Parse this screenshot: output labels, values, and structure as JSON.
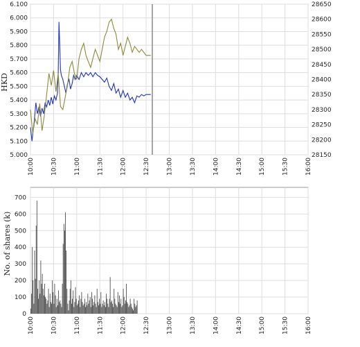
{
  "chart_data": [
    {
      "type": "line",
      "ylabel": "HKD",
      "x_ticks": [
        "10:00",
        "10:30",
        "11:00",
        "11:30",
        "12:00",
        "12:30",
        "13:00",
        "13:30",
        "14:00",
        "14:30",
        "15:00",
        "15:30",
        "16:00"
      ],
      "y_left_ticks": [
        "5.000",
        "5.100",
        "5.200",
        "5.300",
        "5.400",
        "5.500",
        "5.600",
        "5.700",
        "5.800",
        "5.900",
        "6.000",
        "6.100"
      ],
      "y_right_ticks": [
        "28150",
        "28200",
        "28250",
        "28300",
        "28350",
        "28400",
        "28450",
        "28500",
        "28550",
        "28600",
        "28650"
      ],
      "ylim_left": [
        5.0,
        6.1
      ],
      "ylim_right": [
        28150,
        28650
      ],
      "grid": true,
      "current_time_marker": "12:38",
      "series": [
        {
          "axis": "left",
          "color": "#2233bb",
          "x": [
            "10:00",
            "10:02",
            "10:03",
            "10:05",
            "10:07",
            "10:09",
            "10:11",
            "10:13",
            "10:15",
            "10:17",
            "10:19",
            "10:21",
            "10:23",
            "10:25",
            "10:27",
            "10:29",
            "10:31",
            "10:33",
            "10:35",
            "10:36",
            "10:37",
            "10:38",
            "10:39",
            "10:40",
            "10:42",
            "10:44",
            "10:46",
            "10:48",
            "10:50",
            "10:52",
            "10:54",
            "10:56",
            "10:58",
            "11:00",
            "11:03",
            "11:06",
            "11:09",
            "11:12",
            "11:15",
            "11:18",
            "11:21",
            "11:24",
            "11:27",
            "11:30",
            "11:33",
            "11:36",
            "11:39",
            "11:42",
            "11:45",
            "11:48",
            "11:51",
            "11:54",
            "11:57",
            "12:00",
            "12:03",
            "12:06",
            "12:09",
            "12:12",
            "12:15",
            "12:18",
            "12:21",
            "12:24",
            "12:27",
            "12:30",
            "12:33",
            "12:36"
          ],
          "y": [
            5.2,
            5.1,
            5.15,
            5.25,
            5.38,
            5.3,
            5.35,
            5.28,
            5.34,
            5.3,
            5.38,
            5.35,
            5.4,
            5.36,
            5.42,
            5.37,
            5.43,
            5.4,
            5.45,
            5.6,
            5.97,
            5.8,
            5.62,
            5.58,
            5.55,
            5.5,
            5.45,
            5.52,
            5.55,
            5.48,
            5.52,
            5.58,
            5.55,
            5.58,
            5.55,
            5.6,
            5.57,
            5.6,
            5.58,
            5.6,
            5.57,
            5.6,
            5.58,
            5.57,
            5.55,
            5.53,
            5.56,
            5.5,
            5.47,
            5.52,
            5.45,
            5.48,
            5.42,
            5.47,
            5.42,
            5.45,
            5.4,
            5.42,
            5.38,
            5.43,
            5.42,
            5.44,
            5.43,
            5.44,
            5.44,
            5.44
          ]
        },
        {
          "axis": "right",
          "color": "#8a8a3a",
          "x": [
            "10:00",
            "10:03",
            "10:06",
            "10:09",
            "10:12",
            "10:15",
            "10:18",
            "10:21",
            "10:24",
            "10:27",
            "10:30",
            "10:33",
            "10:36",
            "10:39",
            "10:42",
            "10:45",
            "10:48",
            "10:51",
            "10:54",
            "10:57",
            "11:00",
            "11:03",
            "11:06",
            "11:09",
            "11:12",
            "11:15",
            "11:18",
            "11:21",
            "11:24",
            "11:27",
            "11:30",
            "11:33",
            "11:36",
            "11:39",
            "11:42",
            "11:45",
            "11:48",
            "11:51",
            "11:54",
            "11:57",
            "12:00",
            "12:03",
            "12:06",
            "12:09",
            "12:12",
            "12:15",
            "12:18",
            "12:21",
            "12:24",
            "12:27",
            "12:30",
            "12:33",
            "12:36"
          ],
          "y": [
            28300,
            28220,
            28270,
            28250,
            28320,
            28230,
            28280,
            28350,
            28420,
            28380,
            28430,
            28360,
            28420,
            28310,
            28300,
            28340,
            28380,
            28440,
            28460,
            28420,
            28400,
            28470,
            28500,
            28520,
            28480,
            28460,
            28440,
            28470,
            28500,
            28480,
            28460,
            28500,
            28540,
            28560,
            28590,
            28600,
            28570,
            28550,
            28500,
            28520,
            28480,
            28510,
            28540,
            28520,
            28490,
            28510,
            28500,
            28490,
            28500,
            28490,
            28480,
            28480,
            28480
          ]
        }
      ]
    },
    {
      "type": "bar",
      "ylabel": "No. of shares (k)",
      "x_ticks": [
        "10:00",
        "10:30",
        "11:00",
        "11:30",
        "12:00",
        "12:30",
        "13:00",
        "13:30",
        "14:00",
        "14:30",
        "15:00",
        "15:30",
        "16:00"
      ],
      "y_ticks": [
        "0",
        "100",
        "200",
        "300",
        "400",
        "500",
        "600",
        "700"
      ],
      "ylim": [
        0,
        760
      ],
      "grid": true,
      "bar_color": "#444444",
      "x_start": "10:00",
      "minute_step": 1,
      "values": [
        30,
        120,
        400,
        200,
        60,
        380,
        210,
        530,
        680,
        150,
        90,
        200,
        120,
        320,
        180,
        240,
        150,
        110,
        180,
        100,
        90,
        60,
        80,
        150,
        40,
        120,
        70,
        60,
        200,
        130,
        60,
        180,
        110,
        40,
        90,
        50,
        140,
        70,
        80,
        60,
        40,
        180,
        420,
        540,
        500,
        610,
        380,
        150,
        60,
        20,
        80,
        150,
        200,
        60,
        90,
        140,
        40,
        70,
        160,
        90,
        50,
        60,
        80,
        110,
        40,
        90,
        130,
        70,
        50,
        60,
        90,
        40,
        70,
        50,
        120,
        60,
        80,
        100,
        40,
        130,
        90,
        50,
        70,
        110,
        60,
        40,
        150,
        70,
        50,
        90,
        60,
        130,
        40,
        60,
        80,
        50,
        70,
        40,
        120,
        90,
        60,
        40,
        90,
        220,
        70,
        80,
        60,
        40,
        150,
        90,
        60,
        50,
        40,
        130,
        70,
        110,
        60,
        90,
        40,
        50,
        150,
        100,
        60,
        80,
        180,
        70,
        60,
        40,
        50,
        90,
        60,
        40,
        30,
        20,
        90,
        60,
        40,
        50,
        80
      ]
    }
  ]
}
